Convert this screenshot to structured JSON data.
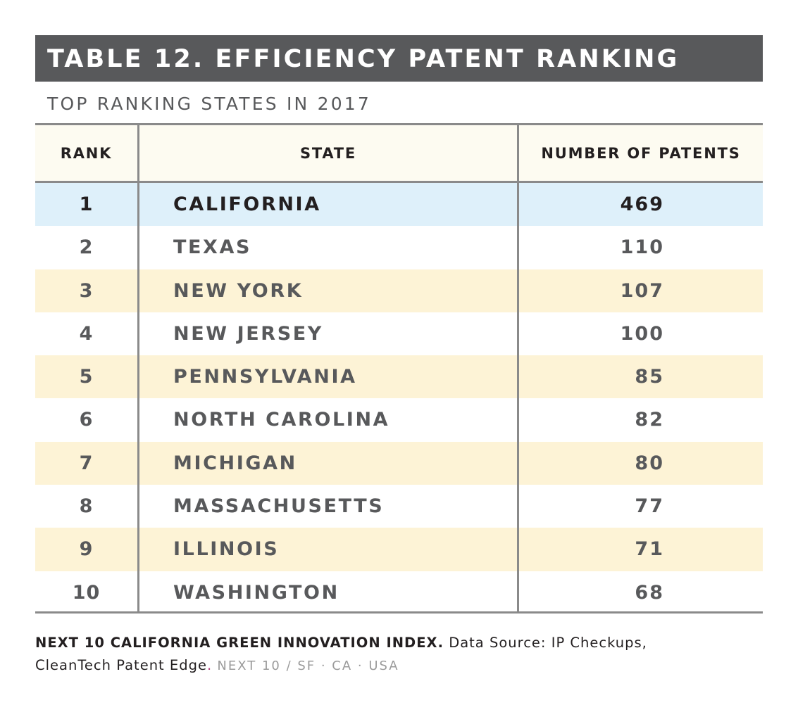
{
  "title": "TABLE 12. EFFICIENCY PATENT RANKING",
  "subtitle": "TOP RANKING STATES IN 2017",
  "columns": {
    "rank": "RANK",
    "state": "STATE",
    "patents": "NUMBER OF PATENTS"
  },
  "chart_data": {
    "type": "table",
    "title": "TABLE 12. EFFICIENCY PATENT RANKING",
    "subtitle": "TOP RANKING STATES IN 2017",
    "columns": [
      "RANK",
      "STATE",
      "NUMBER OF PATENTS"
    ],
    "rows": [
      [
        "1",
        "CALIFORNIA",
        "469"
      ],
      [
        "2",
        "TEXAS",
        "110"
      ],
      [
        "3",
        "NEW YORK",
        "107"
      ],
      [
        "4",
        "NEW JERSEY",
        "100"
      ],
      [
        "5",
        "PENNSYLVANIA",
        "85"
      ],
      [
        "6",
        "NORTH CAROLINA",
        "82"
      ],
      [
        "7",
        "MICHIGAN",
        "80"
      ],
      [
        "8",
        "MASSACHUSETTS",
        "77"
      ],
      [
        "9",
        "ILLINOIS",
        "71"
      ],
      [
        "10",
        "WASHINGTON",
        "68"
      ]
    ],
    "highlighted_row": 0
  },
  "colors": {
    "title_bar": "#58595b",
    "header_bg": "#fdfbf1",
    "highlight_row": "#def0fa",
    "stripe_row": "#fdf3d6",
    "rule": "#8a8a8a"
  },
  "footer": {
    "org": "NEXT 10 CALIFORNIA GREEN INNOVATION INDEX.",
    "source_line1": "Data Source: IP Checkups,",
    "source_line2": "CleanTech Patent Edge",
    "dot": ".",
    "brand": "NEXT 10 / SF · CA · USA"
  }
}
